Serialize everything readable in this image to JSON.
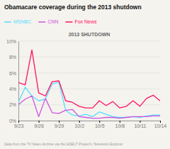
{
  "chart_data": {
    "type": "line",
    "title": "Obamacare coverage during the 2013 shutdown",
    "subtitle": "2013 SHUTDOWN",
    "footnote": "Data from the TV News Archive via the GDELT Project's Television Explorer",
    "categories": [
      "9/23",
      null,
      null,
      "9/26",
      null,
      null,
      "9/29",
      null,
      null,
      "10/2",
      null,
      null,
      "10/5",
      null,
      null,
      "10/8",
      null,
      null,
      "10/11",
      null,
      null,
      "10/14"
    ],
    "series": [
      {
        "name": "MSNBC",
        "color": "#55ddff",
        "values": [
          2.3,
          4.2,
          3.1,
          2.5,
          2.7,
          4.6,
          4.8,
          1.3,
          0.7,
          0.6,
          0.8,
          0.5,
          1.1,
          0.8,
          0.5,
          0.4,
          0.4,
          0.5,
          0.4,
          0.6,
          0.7,
          0.7
        ]
      },
      {
        "name": "CNN",
        "color": "#cc55dd",
        "values": [
          2.0,
          2.7,
          3.1,
          0.5,
          2.8,
          1.0,
          0.9,
          1.3,
          1.4,
          0.5,
          0.4,
          0.3,
          0.3,
          0.4,
          0.4,
          0.3,
          0.4,
          0.5,
          0.5,
          0.5,
          0.6,
          0.6
        ]
      },
      {
        "name": "Fox News",
        "color": "#ff1166",
        "values": [
          4.8,
          4.5,
          8.9,
          3.5,
          3.1,
          4.9,
          5.0,
          2.5,
          2.3,
          1.8,
          1.6,
          1.6,
          2.5,
          1.9,
          2.4,
          1.6,
          1.8,
          2.5,
          1.8,
          2.8,
          3.2,
          2.5
        ]
      }
    ],
    "ylim": [
      0,
      10
    ],
    "yticks": [
      {
        "value": 0,
        "label": "0%"
      },
      {
        "value": 2,
        "label": "2%"
      },
      {
        "value": 4,
        "label": "4%"
      },
      {
        "value": 6,
        "label": "6%"
      },
      {
        "value": 8,
        "label": "8%"
      },
      {
        "value": 10,
        "label": "10%"
      }
    ],
    "grid": true,
    "legend": "top-left"
  }
}
